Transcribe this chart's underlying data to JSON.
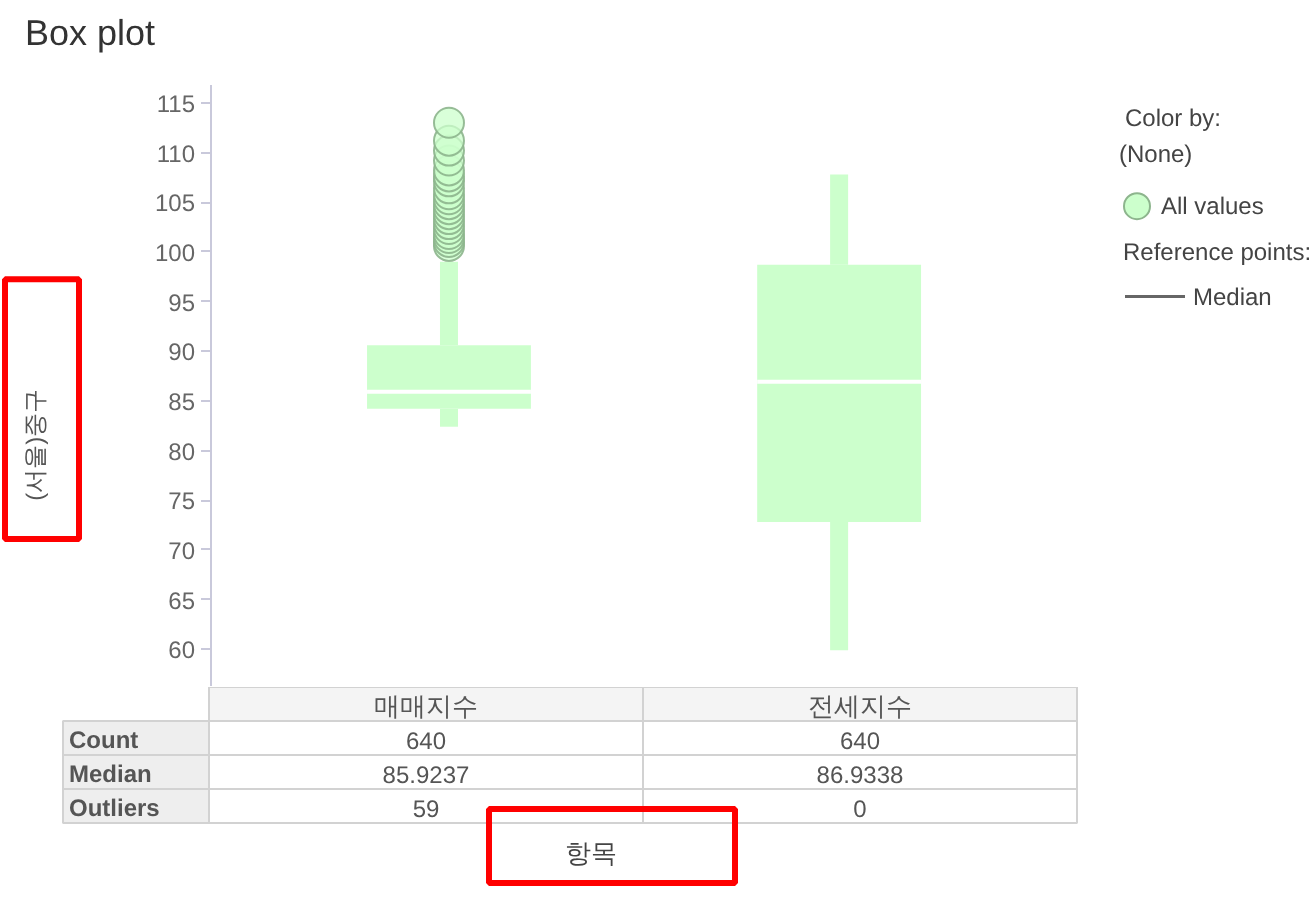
{
  "chart_data": [
    {
      "type": "box",
      "title": "Box plot",
      "xlabel": "항목",
      "ylabel": "(서울)중구",
      "legend_title": "Color by:",
      "annotations": [
        "(None)",
        "Reference points:",
        "Median"
      ],
      "categories": [
        "매매지수",
        "전세지수"
      ],
      "series": [
        {
          "name": "All values",
          "color": "#ccffcc",
          "boxes": [
            {
              "low": 82.4,
              "q1": 84.2,
              "median": 85.9237,
              "q3": 90.6,
              "high": 99.0,
              "outliers": [
                100.6,
                101.0,
                101.4,
                101.8,
                102.3,
                102.8,
                103.3,
                103.8,
                104.3,
                104.8,
                105.3,
                105.8,
                106.4,
                107.1,
                107.6,
                108.2,
                109.2,
                110.2,
                111.2,
                113.0
              ]
            },
            {
              "low": 59.9,
              "q1": 72.8,
              "median": 86.9338,
              "q3": 98.7,
              "high": 107.8
            }
          ]
        }
      ],
      "ylim": [
        56.2,
        116.8
      ],
      "yticks": [
        60,
        65,
        70,
        75,
        80,
        85,
        90,
        95,
        100,
        105,
        110,
        115
      ],
      "marker": "circle",
      "legend": "top right"
    },
    {
      "type": "other",
      "categories": [
        "Count",
        "Median",
        "Outliers"
      ],
      "series": [
        {
          "values": [
            640,
            85.9237,
            59
          ]
        },
        {
          "values": [
            640,
            86.9338,
            0
          ]
        }
      ],
      "data_labels": true
    }
  ]
}
